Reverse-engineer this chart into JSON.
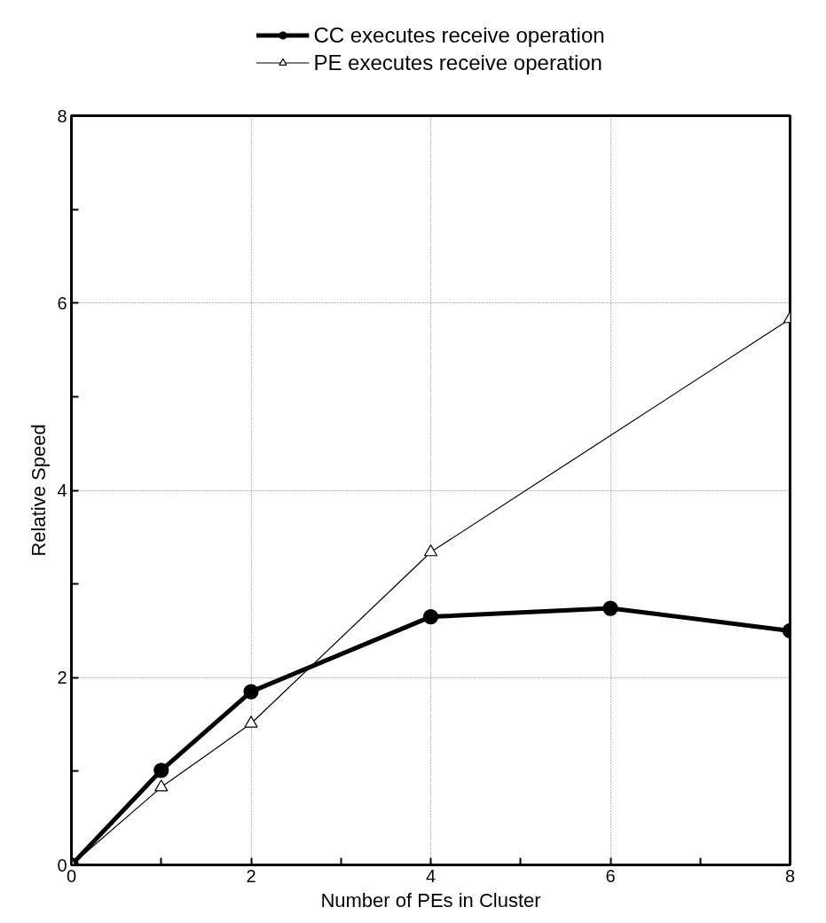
{
  "chart_data": {
    "type": "line",
    "xlabel": "Number of PEs in Cluster",
    "ylabel": "Relative Speed",
    "xlim": [
      0,
      8
    ],
    "ylim": [
      0,
      8
    ],
    "xticks": [
      0,
      {
        "value": 1,
        "label": null
      },
      2,
      {
        "value": 3,
        "label": null
      },
      4,
      {
        "value": 5,
        "label": null
      },
      6,
      {
        "value": 7,
        "label": null
      },
      8
    ],
    "yticks": [
      0,
      {
        "value": 1,
        "label": null
      },
      2,
      {
        "value": 3,
        "label": null
      },
      4,
      {
        "value": 5,
        "label": null
      },
      6,
      {
        "value": 7,
        "label": null
      },
      8
    ],
    "grid": true,
    "legend": "top",
    "line_style": "solid",
    "series": [
      {
        "name": "CC executes receive operation",
        "color": "#000000",
        "marker": "circle",
        "x": [
          0,
          1,
          2,
          4,
          6,
          8
        ],
        "values": [
          0,
          1.01,
          1.85,
          2.65,
          2.74,
          2.5
        ]
      },
      {
        "name": "PE executes receive operation",
        "color": "#000000",
        "marker": "triangle",
        "x": [
          0,
          1,
          2,
          4,
          8
        ],
        "values": [
          0,
          0.83,
          1.51,
          3.34,
          5.83
        ]
      }
    ]
  }
}
